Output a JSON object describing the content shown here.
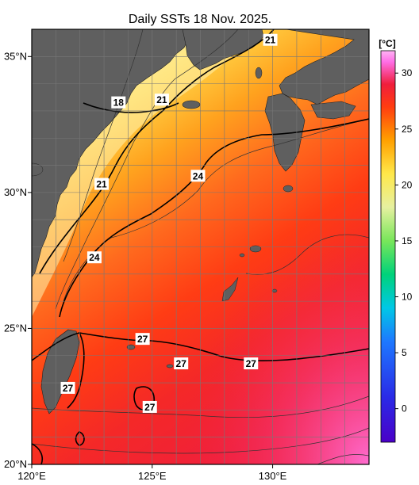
{
  "title": "Daily SSTs 18 Nov. 2025.",
  "map": {
    "lon_range": [
      120,
      134
    ],
    "lat_range": [
      20,
      36
    ],
    "lon_ticks": [
      {
        "value": 120,
        "label": "120°E"
      },
      {
        "value": 125,
        "label": "125°E"
      },
      {
        "value": 130,
        "label": "130°E"
      }
    ],
    "lat_ticks": [
      {
        "value": 35,
        "label": "35°N"
      },
      {
        "value": 30,
        "label": "30°N"
      },
      {
        "value": 25,
        "label": "25°N"
      },
      {
        "value": 20,
        "label": "20°N"
      }
    ],
    "land_color": "#5f5f5f",
    "grid_color": "#777777"
  },
  "contour_labels": [
    {
      "text": "21",
      "lon": 129.9,
      "lat": 35.6
    },
    {
      "text": "18",
      "lon": 123.6,
      "lat": 33.3
    },
    {
      "text": "21",
      "lon": 125.4,
      "lat": 33.4
    },
    {
      "text": "21",
      "lon": 122.9,
      "lat": 30.3
    },
    {
      "text": "24",
      "lon": 126.9,
      "lat": 30.6
    },
    {
      "text": "24",
      "lon": 122.6,
      "lat": 27.6
    },
    {
      "text": "27",
      "lon": 124.6,
      "lat": 24.6
    },
    {
      "text": "27",
      "lon": 126.2,
      "lat": 23.7
    },
    {
      "text": "27",
      "lon": 129.1,
      "lat": 23.7
    },
    {
      "text": "27",
      "lon": 121.5,
      "lat": 22.8
    },
    {
      "text": "27",
      "lon": 124.9,
      "lat": 22.1
    }
  ],
  "colorbar": {
    "unit": "[°C]",
    "min": -3,
    "max": 32,
    "ticks": [
      0,
      5,
      10,
      15,
      20,
      25,
      30
    ],
    "stops": [
      {
        "v": -3,
        "c": "#4a00c8"
      },
      {
        "v": 1,
        "c": "#2a2ae6"
      },
      {
        "v": 6,
        "c": "#1e78ff"
      },
      {
        "v": 9,
        "c": "#00c8e6"
      },
      {
        "v": 12,
        "c": "#00d27a"
      },
      {
        "v": 15,
        "c": "#78e65a"
      },
      {
        "v": 18,
        "c": "#e6f0a0"
      },
      {
        "v": 21,
        "c": "#ffe84a"
      },
      {
        "v": 24,
        "c": "#ffa000"
      },
      {
        "v": 27,
        "c": "#ff3c10"
      },
      {
        "v": 29,
        "c": "#f01e3c"
      },
      {
        "v": 31,
        "c": "#ff6ee6"
      },
      {
        "v": 32,
        "c": "#ffb4f5"
      }
    ]
  }
}
